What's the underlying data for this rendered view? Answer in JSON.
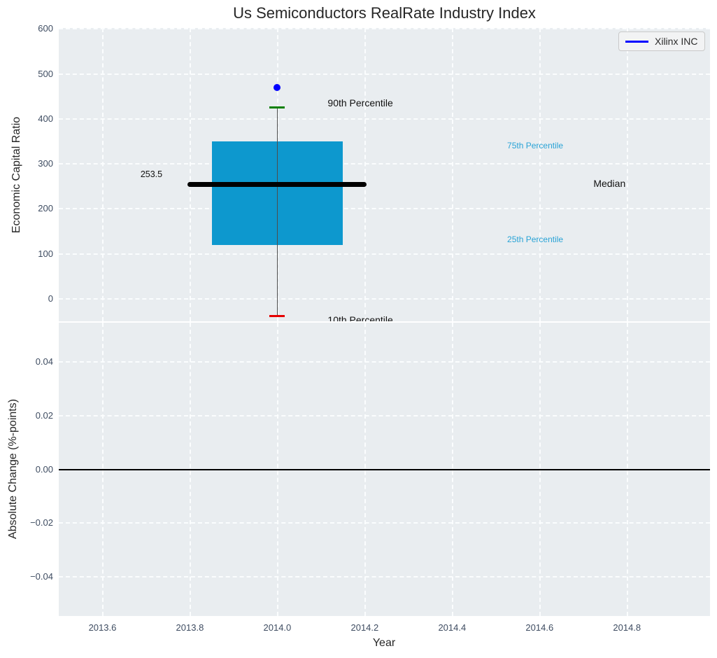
{
  "chart_data": {
    "type": "box",
    "title": "Us Semiconductors RealRate Industry Index",
    "x": {
      "label": "Year",
      "lim": [
        2013.5,
        2014.99
      ],
      "ticks": [
        {
          "v": 2013.6,
          "label": "2013.6"
        },
        {
          "v": 2013.8,
          "label": "2013.8"
        },
        {
          "v": 2014.0,
          "label": "2014.0"
        },
        {
          "v": 2014.2,
          "label": "2014.2"
        },
        {
          "v": 2014.4,
          "label": "2014.4"
        },
        {
          "v": 2014.6,
          "label": "2014.6"
        },
        {
          "v": 2014.8,
          "label": "2014.8"
        }
      ]
    },
    "top_panel": {
      "ylabel": "Economic Capital Ratio",
      "ylim": [
        -50,
        602
      ],
      "yticks": [
        {
          "v": 600,
          "label": "600"
        },
        {
          "v": 500,
          "label": "500"
        },
        {
          "v": 400,
          "label": "400"
        },
        {
          "v": 300,
          "label": "300"
        },
        {
          "v": 200,
          "label": "200"
        },
        {
          "v": 100,
          "label": "100"
        },
        {
          "v": 0,
          "label": "0"
        }
      ],
      "box": {
        "year": 2014.0,
        "box_half_width": 0.15,
        "p10": -38,
        "p25": 120,
        "median": 253.5,
        "p75": 350,
        "p90": 425,
        "median_line_span": [
          2013.795,
          2014.205
        ]
      },
      "company_point": {
        "name": "Xilinx INC",
        "year": 2014.0,
        "value": 470,
        "color": "#0000ff"
      },
      "colors": {
        "box_fill": "#0d98ce",
        "median": "#000000",
        "p90_cap": "#0a8002",
        "p10_cap": "#e60000",
        "whisker": "#4d4d4d"
      },
      "annotations": [
        {
          "text": "253.5",
          "x": 2013.712,
          "y": 277,
          "color": "#111111",
          "size": 12.5
        },
        {
          "text": "90th Percentile",
          "x": 2014.19,
          "y": 436,
          "color": "#111111",
          "size": 14
        },
        {
          "text": "75th Percentile",
          "x": 2014.59,
          "y": 341,
          "color": "#29a3d6",
          "size": 12
        },
        {
          "text": "Median",
          "x": 2014.76,
          "y": 257,
          "color": "#111111",
          "size": 14
        },
        {
          "text": "25th Percentile",
          "x": 2014.59,
          "y": 132,
          "color": "#29a3d6",
          "size": 12
        },
        {
          "text": "10th Percentile",
          "x": 2014.19,
          "y": -47,
          "color": "#111111",
          "size": 14
        }
      ]
    },
    "bottom_panel": {
      "ylabel": "Absolute Change (%-points)",
      "ylim": [
        -0.0545,
        0.0545
      ],
      "yticks": [
        {
          "v": 0.04,
          "label": "0.04"
        },
        {
          "v": 0.02,
          "label": "0.02"
        },
        {
          "v": 0.0,
          "label": "0.00"
        },
        {
          "v": -0.02,
          "label": "−0.02"
        },
        {
          "v": -0.04,
          "label": "−0.04"
        }
      ],
      "zero_line": 0.0
    },
    "legend": {
      "label": "Xilinx INC",
      "line_color": "#0000ff",
      "position": "upper right"
    },
    "style": {
      "panel_bg": "#e9edf0",
      "grid_color": "#ffffff",
      "grid_dashed": true,
      "tick_color": "#3e4c61",
      "figure_bg": "#ffffff"
    }
  }
}
